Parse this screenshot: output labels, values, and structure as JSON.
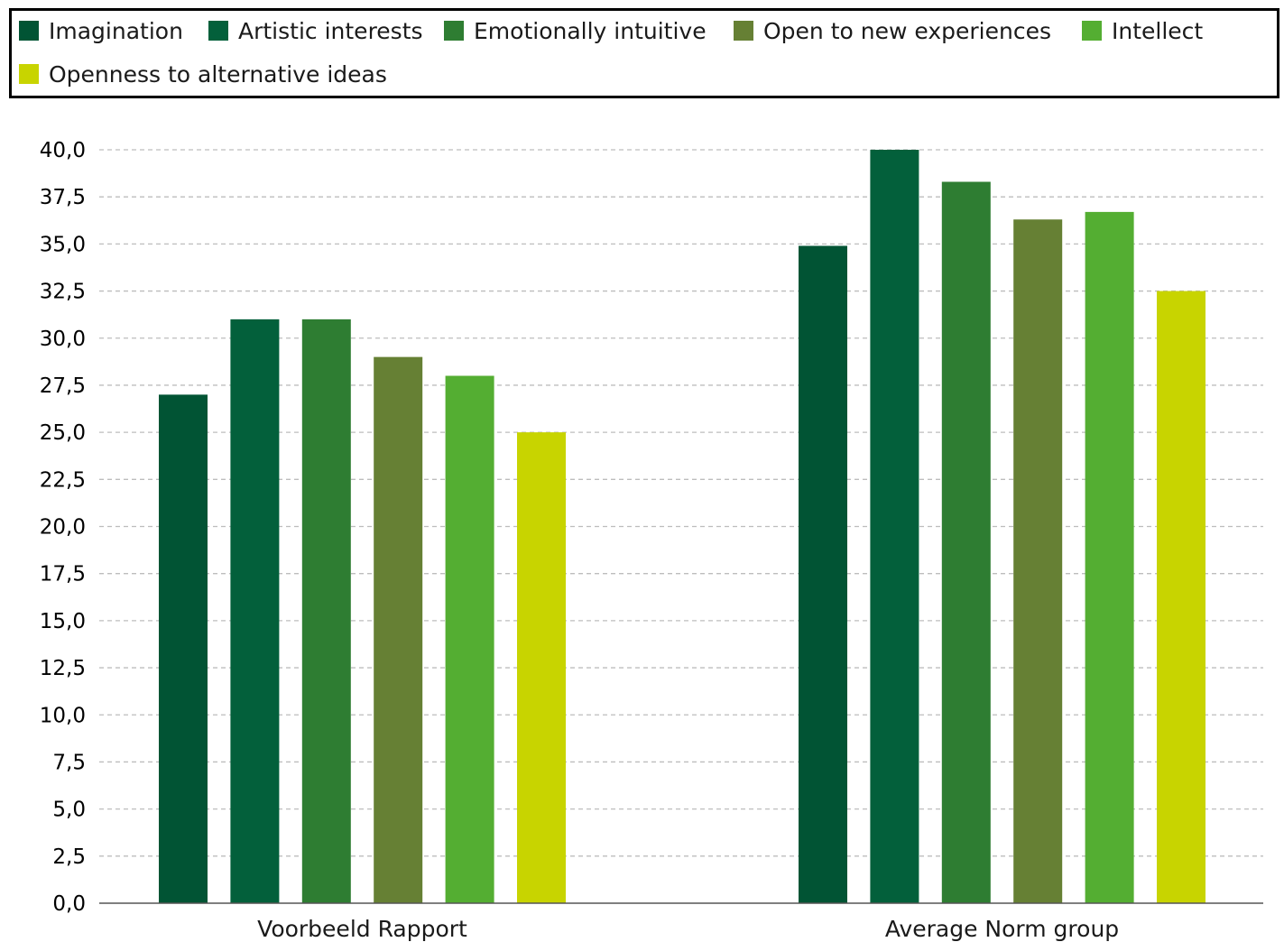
{
  "chart_data": {
    "type": "bar",
    "categories": [
      "Voorbeeld Rapport",
      "Average Norm group"
    ],
    "series": [
      {
        "name": "Imagination",
        "color": "#015434",
        "values": [
          27.0,
          34.9
        ]
      },
      {
        "name": "Artistic interests",
        "color": "#03603B",
        "values": [
          31.0,
          40.0
        ]
      },
      {
        "name": "Emotionally intuitive",
        "color": "#2E7D32",
        "values": [
          31.0,
          38.3
        ]
      },
      {
        "name": "Open to new experiences",
        "color": "#668034",
        "values": [
          29.0,
          36.3
        ]
      },
      {
        "name": "Intellect",
        "color": "#54AE32",
        "values": [
          28.0,
          36.7
        ]
      },
      {
        "name": "Openness to alternative ideas",
        "color": "#C8D400",
        "values": [
          25.0,
          32.5
        ]
      }
    ],
    "y_ticks": [
      "0,0",
      "2,5",
      "5,0",
      "7,5",
      "10,0",
      "12,5",
      "15,0",
      "17,5",
      "20,0",
      "22,5",
      "25,0",
      "27,5",
      "30,0",
      "32,5",
      "35,0",
      "37,5",
      "40,0"
    ],
    "ylim": [
      0,
      40
    ],
    "grid": "dashed horizontal",
    "legend_position": "top"
  }
}
